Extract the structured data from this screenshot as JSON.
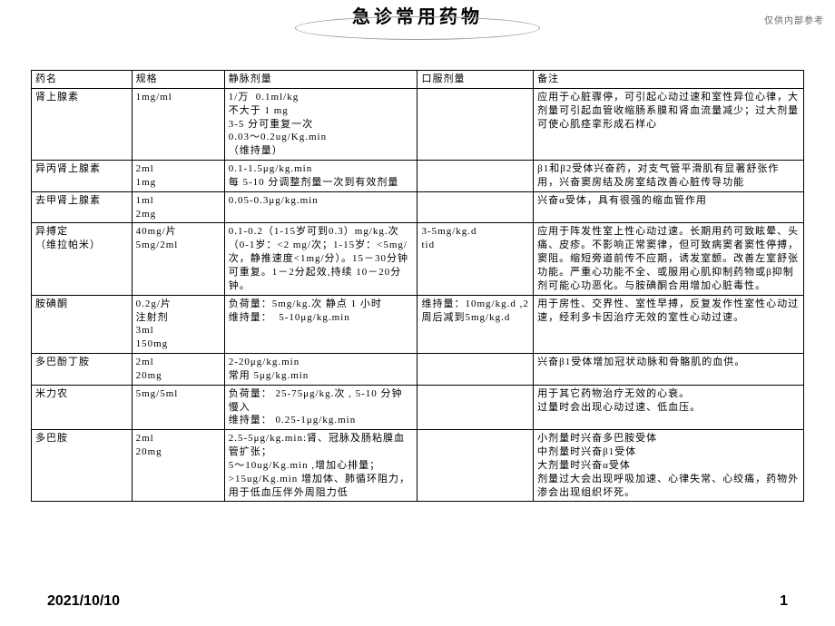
{
  "title": "急诊常用药物",
  "watermark": "仅供内部参考",
  "footer_date": "2021/10/10",
  "footer_page": "1",
  "columns": [
    "药名",
    "规格",
    "静脉剂量",
    "口服剂量",
    "备注"
  ],
  "rows": [
    {
      "name": "肾上腺素",
      "spec": "1mg/ml",
      "iv": "1/万  0.1ml/kg\n不大于 1 mg\n3-5 分可重复一次\n0.03～0.2ug/Kg.min\n（维持量）",
      "oral": "",
      "note": "应用于心脏骤停，可引起心动过速和室性异位心律，大剂量可引起血管收缩肠系膜和肾血流量减少；过大剂量可使心肌痉挛形成石样心"
    },
    {
      "name": "异丙肾上腺素",
      "spec": "2ml\n1mg",
      "iv": "0.1-1.5μg/kg.min\n每 5-10 分调整剂量一次到有效剂量",
      "oral": "",
      "note": "β1和β2受体兴奋药，对支气管平滑肌有显著舒张作用，兴奋窦房结及房室结改善心脏传导功能"
    },
    {
      "name": "去甲肾上腺素",
      "spec": "1ml\n2mg",
      "iv": "0.05-0.3μg/kg.min",
      "oral": "",
      "note": "兴奋α受体，具有很强的缩血管作用",
      "merge_bottom": true
    },
    {
      "name": "异搏定\n（维拉帕米）",
      "spec": "40mg/片\n5mg/2ml",
      "iv": "0.1-0.2（1-15岁可到0.3）mg/kg.次（0-1岁：<2 mg/次；1-15岁：<5mg/次，静推速度<1mg/分）。15－30分钟可重复。1－2分起效,持续 10－20分钟。",
      "oral": "3-5mg/kg.d\ntid",
      "note": "应用于阵发性室上性心动过速。长期用药可致眩晕、头痛、皮疹。不影响正常窦律，但可致病窦者窦性停搏，窦阻。缩短旁道前传不应期，诱发室颤。改善左室舒张功能。严重心功能不全、或服用心肌抑制药物或β抑制剂可能心功恶化。与胺碘酮合用增加心脏毒性。",
      "merge_top": true
    },
    {
      "name": "胺碘酮",
      "spec": "0.2g/片\n注射剂\n3ml\n150mg",
      "iv": "负荷量：5mg/kg.次 静点 1 小时\n维持量：  5-10μg/kg.min",
      "oral": "维持量：10mg/kg.d ,2周后减到5mg/kg.d",
      "note": "用于房性、交界性、室性早搏，反复发作性室性心动过速，经利多卡因治疗无效的室性心动过速。"
    },
    {
      "name": "多巴酚丁胺",
      "spec": "2ml\n20mg",
      "iv": "2-20μg/kg.min\n常用 5μg/kg.min",
      "oral": "",
      "note": "兴奋β1受体增加冠状动脉和骨骼肌的血供。"
    },
    {
      "name": "米力农",
      "spec": "5mg/5ml",
      "iv": "负荷量： 25-75μg/kg.次 , 5-10 分钟慢入\n维持量： 0.25-1μg/kg.min",
      "oral": "",
      "note": "用于其它药物治疗无效的心衰。\n过量时会出现心动过速、低血压。"
    },
    {
      "name": "多巴胺",
      "spec": "2ml\n20mg",
      "iv": "2.5-5μg/kg.min:肾、冠脉及肠粘膜血管扩张；\n5～10ug/Kg.min ,增加心排量；\n>15ug/Kg.min 增加体、肺循环阻力，用于低血压伴外周阻力低",
      "oral": "",
      "note": "小剂量时兴奋多巴胺受体\n中剂量时兴奋β1受体\n大剂量时兴奋α受体\n剂量过大会出现呼吸加速、心律失常、心绞痛，药物外渗会出现组织坏死。"
    }
  ]
}
